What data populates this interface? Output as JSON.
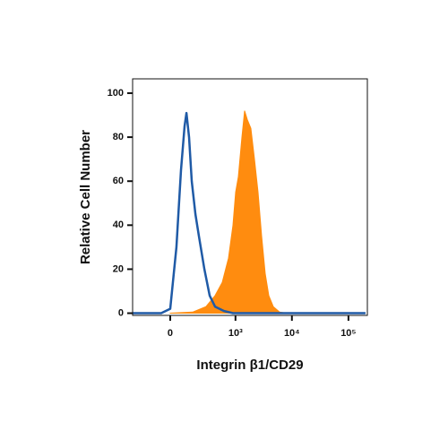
{
  "chart_data": {
    "type": "flow-histogram",
    "xlabel": "Integrin β1/CD29",
    "ylabel": "Relative Cell Number",
    "xscale": "biexponential",
    "xlim": [
      -311,
      216000
    ],
    "ylim": [
      -1,
      106.5
    ],
    "xticks": [
      0,
      {
        "value": 1000,
        "label": "10³"
      },
      {
        "value": 10000,
        "label": "10⁴"
      },
      {
        "value": 100000,
        "label": "10⁵"
      }
    ],
    "yticks": [
      0,
      20,
      40,
      60,
      80,
      100
    ],
    "series": [
      {
        "style": "area",
        "color": "#ff8c0f",
        "x": [
          0,
          147,
          286,
          426,
          577,
          749,
          903,
          1007,
          1125,
          1303,
          1455,
          1624,
          1882,
          2178,
          2521,
          2918,
          3370,
          3906,
          4681,
          6049,
          8107
        ],
        "values": [
          0,
          0.5,
          3,
          8,
          14,
          25,
          40,
          55,
          62,
          80,
          92,
          88,
          84,
          70,
          55,
          35,
          18,
          8,
          3,
          0.5,
          0
        ]
      },
      {
        "style": "line",
        "color": "#1f5aa6",
        "x": [
          -311,
          -53,
          0,
          36,
          64,
          87,
          100,
          119,
          140,
          171,
          205,
          266,
          337,
          426,
          622,
          903,
          200000
        ],
        "values": [
          0,
          0,
          2,
          30,
          65,
          85,
          91,
          80,
          60,
          45,
          35,
          20,
          8,
          3,
          1,
          0,
          0
        ]
      }
    ]
  }
}
